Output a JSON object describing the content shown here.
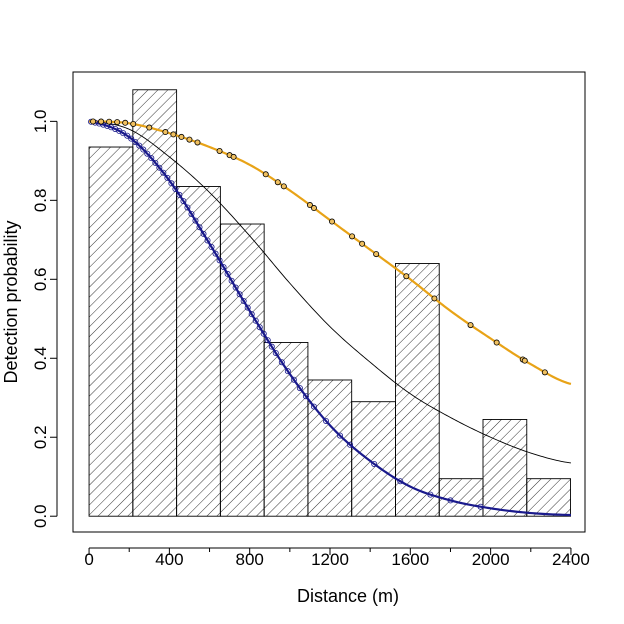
{
  "chart_data": {
    "type": "histogram_with_fitted_curves",
    "xlabel": "Distance (m)",
    "ylabel": "Detection probability",
    "xlim": [
      -80,
      2470
    ],
    "ylim": [
      -0.04,
      1.125
    ],
    "x_ticks": [
      0,
      400,
      800,
      1200,
      1600,
      2000,
      2400
    ],
    "x_minor_ticks": [
      200,
      600,
      1000,
      1400,
      1800,
      2200
    ],
    "y_ticks": [
      0.0,
      0.2,
      0.4,
      0.6,
      0.8,
      1.0
    ],
    "y_tick_labels": [
      "0.0",
      "0.2",
      "0.4",
      "0.6",
      "0.8",
      "1.0"
    ],
    "histogram": {
      "bin_edges": [
        0,
        218,
        436,
        654,
        872,
        1090,
        1308,
        1526,
        1744,
        1962,
        2180,
        2398
      ],
      "values": [
        0.935,
        1.08,
        0.835,
        0.74,
        0.44,
        0.345,
        0.29,
        0.64,
        0.095,
        0.245,
        0.095
      ],
      "fill": "diagonal hatch"
    },
    "series": [
      {
        "type": "line",
        "color": "#000000",
        "x": [
          0,
          200,
          400,
          600,
          800,
          1000,
          1200,
          1400,
          1600,
          1800,
          2000,
          2200,
          2400
        ],
        "y": [
          1.0,
          0.98,
          0.91,
          0.82,
          0.71,
          0.59,
          0.48,
          0.39,
          0.31,
          0.25,
          0.2,
          0.16,
          0.135
        ]
      },
      {
        "type": "line",
        "color": "#1a1a8c",
        "x": [
          0,
          200,
          400,
          600,
          800,
          1000,
          1200,
          1400,
          1600,
          1800,
          2000,
          2200,
          2400
        ],
        "y": [
          1.0,
          0.96,
          0.85,
          0.69,
          0.52,
          0.36,
          0.23,
          0.14,
          0.075,
          0.04,
          0.02,
          0.008,
          0.003
        ]
      },
      {
        "type": "line",
        "color": "#e8a317",
        "x": [
          0,
          200,
          400,
          600,
          800,
          1000,
          1200,
          1400,
          1600,
          1800,
          2000,
          2200,
          2400
        ],
        "y": [
          1.0,
          0.995,
          0.97,
          0.935,
          0.89,
          0.825,
          0.75,
          0.675,
          0.6,
          0.52,
          0.45,
          0.385,
          0.335
        ]
      }
    ],
    "point_sets": [
      {
        "color": "#1a1a8c",
        "on_series": 1,
        "x": [
          10,
          30,
          50,
          70,
          90,
          110,
          130,
          150,
          170,
          190,
          210,
          230,
          250,
          270,
          290,
          310,
          330,
          350,
          370,
          390,
          410,
          430,
          450,
          470,
          490,
          510,
          530,
          550,
          570,
          590,
          610,
          630,
          650,
          670,
          690,
          710,
          730,
          750,
          770,
          790,
          810,
          830,
          850,
          870,
          890,
          910,
          930,
          960,
          990,
          1020,
          1050,
          1080,
          1120,
          1180,
          1250,
          1300,
          1420,
          1550,
          1700,
          1800,
          1950
        ]
      },
      {
        "color": "#e8a317",
        "on_series": 2,
        "x": [
          20,
          60,
          100,
          140,
          180,
          220,
          300,
          380,
          420,
          460,
          500,
          540,
          650,
          700,
          720,
          880,
          940,
          970,
          1100,
          1120,
          1210,
          1310,
          1360,
          1430,
          1580,
          1720,
          1900,
          2030,
          2160,
          2170,
          2270
        ]
      }
    ]
  }
}
